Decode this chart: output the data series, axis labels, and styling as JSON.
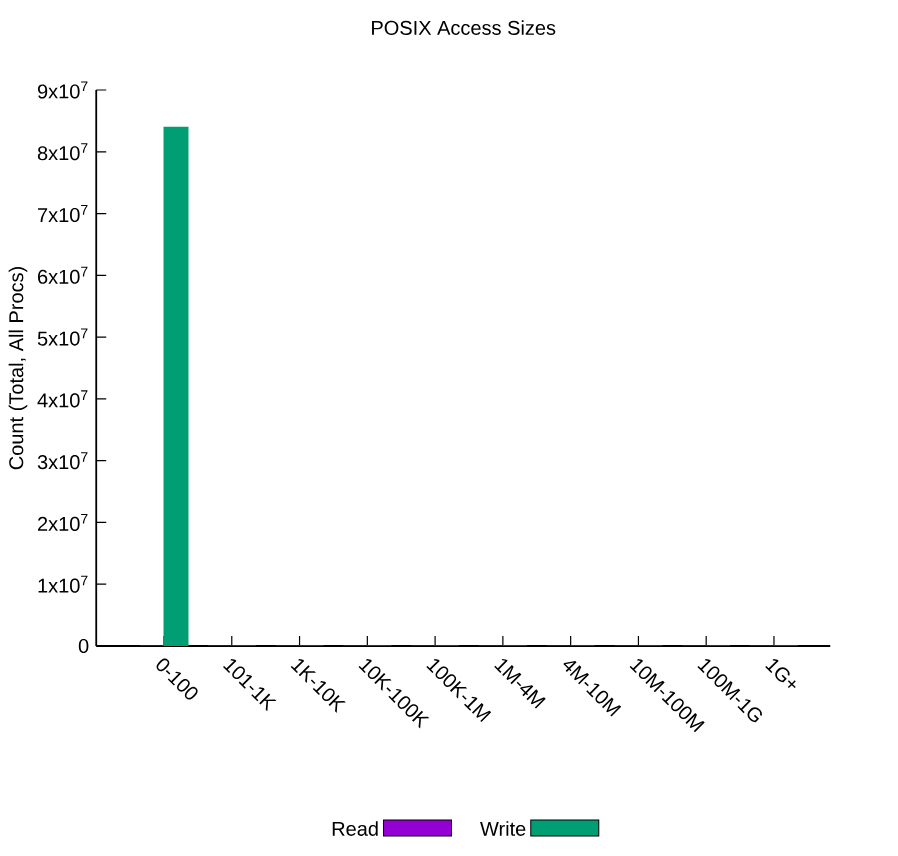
{
  "chart_data": {
    "type": "bar",
    "title": "POSIX Access Sizes",
    "ylabel": "Count (Total, All Procs)",
    "categories": [
      "0-100",
      "101-1K",
      "1K-10K",
      "10K-100K",
      "100K-1M",
      "1M-4M",
      "4M-10M",
      "10M-100M",
      "100M-1G",
      "1G+"
    ],
    "series": [
      {
        "name": "Read",
        "color": "#9400d3",
        "values": [
          0,
          0,
          0,
          0,
          0,
          0,
          0,
          0,
          0,
          0
        ]
      },
      {
        "name": "Write",
        "color": "#009e73",
        "values": [
          84000000,
          0,
          0,
          0,
          0,
          0,
          0,
          0,
          0,
          0
        ]
      }
    ],
    "ylim": [
      0,
      90000000
    ],
    "yticks": [
      0,
      {
        "value": 10000000,
        "label": "1x10$^{7}$"
      },
      {
        "value": 20000000,
        "label": "2x10$^{7}$"
      },
      {
        "value": 30000000,
        "label": "3x10$^{7}$"
      },
      {
        "value": 40000000,
        "label": "4x10$^{7}$"
      },
      {
        "value": 50000000,
        "label": "5x10$^{7}$"
      },
      {
        "value": 60000000,
        "label": "6x10$^{7}$"
      },
      {
        "value": 70000000,
        "label": "7x10$^{7}$"
      },
      {
        "value": 80000000,
        "label": "8x10$^{7}$"
      },
      {
        "value": 90000000,
        "label": "9x10$^{7}$"
      }
    ],
    "grid": false,
    "legend": "bottom"
  }
}
